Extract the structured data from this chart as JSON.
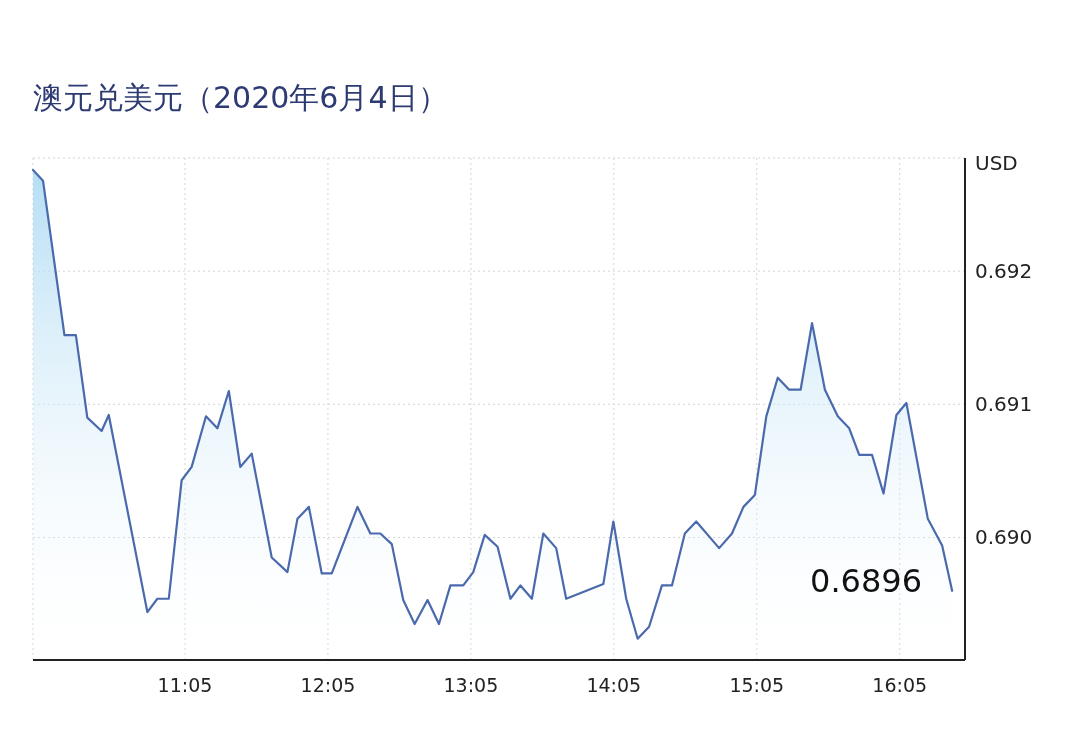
{
  "chart_data": {
    "type": "area",
    "title": "澳元兑美元（2020年6月4日）",
    "ylabel": "USD",
    "x": [
      10.02,
      10.09,
      10.24,
      10.32,
      10.4,
      10.5,
      10.55,
      10.82,
      10.89,
      10.97,
      11.06,
      11.13,
      11.23,
      11.31,
      11.39,
      11.47,
      11.55,
      11.69,
      11.8,
      11.87,
      11.95,
      12.04,
      12.11,
      12.29,
      12.38,
      12.45,
      12.53,
      12.61,
      12.69,
      12.78,
      12.86,
      12.94,
      13.03,
      13.1,
      13.18,
      13.27,
      13.36,
      13.43,
      13.51,
      13.59,
      13.68,
      13.75,
      14.01,
      14.08,
      14.17,
      14.25,
      14.33,
      14.42,
      14.49,
      14.58,
      14.66,
      14.82,
      14.91,
      14.99,
      15.07,
      15.15,
      15.23,
      15.31,
      15.39,
      15.47,
      15.56,
      15.65,
      15.73,
      15.8,
      15.89,
      15.97,
      16.06,
      16.13,
      16.28,
      16.38,
      16.45
    ],
    "series": [
      {
        "color": "#4a6aad",
        "values": [
          0.69276,
          0.69268,
          0.69152,
          0.69152,
          0.6909,
          0.6908,
          0.69092,
          0.68944,
          0.68954,
          0.68954,
          0.69043,
          0.69053,
          0.69091,
          0.69082,
          0.6911,
          0.69053,
          0.69063,
          0.68985,
          0.68974,
          0.69014,
          0.69023,
          0.68973,
          0.68973,
          0.69023,
          0.69003,
          0.69003,
          0.68995,
          0.68953,
          0.68935,
          0.68953,
          0.68935,
          0.68964,
          0.68964,
          0.68974,
          0.69002,
          0.68993,
          0.68954,
          0.68964,
          0.68954,
          0.69003,
          0.68992,
          0.68954,
          0.68965,
          0.69012,
          0.68954,
          0.68924,
          0.68933,
          0.68964,
          0.68964,
          0.69003,
          0.69012,
          0.68992,
          0.69003,
          0.69023,
          0.69032,
          0.69091,
          0.6912,
          0.69111,
          0.69111,
          0.69161,
          0.69111,
          0.69091,
          0.69082,
          0.69062,
          0.69062,
          0.69033,
          0.69092,
          0.69101,
          0.69014,
          0.68994,
          0.6896
        ]
      }
    ],
    "xlim": [
      10.02,
      16.54
    ],
    "ylim": [
      0.68908,
      0.69285
    ],
    "xticks": [
      {
        "value": 11.0833,
        "label": "11:05"
      },
      {
        "value": 12.0833,
        "label": "12:05"
      },
      {
        "value": 13.0833,
        "label": "13:05"
      },
      {
        "value": 14.0833,
        "label": "14:05"
      },
      {
        "value": 15.0833,
        "label": "15:05"
      },
      {
        "value": 16.0833,
        "label": "16:05"
      }
    ],
    "yticks": [
      {
        "value": 0.69,
        "label": "0.690"
      },
      {
        "value": 0.691,
        "label": "0.691"
      },
      {
        "value": 0.692,
        "label": "0.692"
      }
    ],
    "grid": true,
    "marker": "none",
    "line_style": "solid",
    "annotations": [
      "0.6896"
    ]
  }
}
